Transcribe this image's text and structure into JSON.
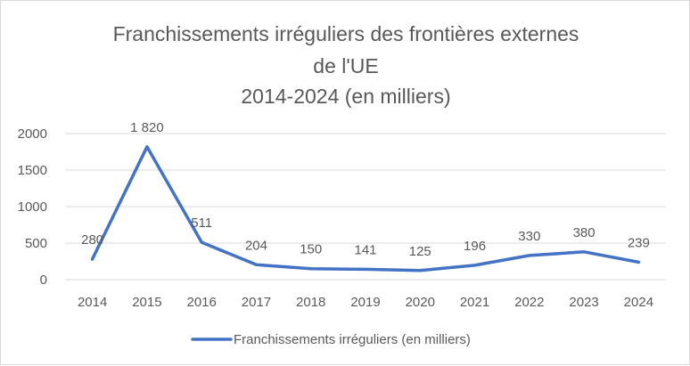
{
  "chart_data": {
    "type": "line",
    "title_lines": [
      "Franchissements irréguliers des frontières externes",
      "de l'UE",
      "2014-2024 (en milliers)"
    ],
    "categories": [
      "2014",
      "2015",
      "2016",
      "2017",
      "2018",
      "2019",
      "2020",
      "2021",
      "2022",
      "2023",
      "2024"
    ],
    "series": [
      {
        "name": "Franchissements irréguliers (en milliers)",
        "values": [
          280,
          1820,
          511,
          204,
          150,
          141,
          125,
          196,
          330,
          380,
          239
        ],
        "labels": [
          "280",
          "1 820",
          "511",
          "204",
          "150",
          "141",
          "125",
          "196",
          "330",
          "380",
          "239"
        ],
        "color": "#4472c4"
      }
    ],
    "y_ticks": [
      "0",
      "500",
      "1000",
      "1500",
      "2000"
    ],
    "ylim": [
      0,
      2000
    ],
    "grid": true,
    "legend_position": "bottom",
    "gridline_color": "#d9d9d9",
    "axis_line_color": "#d9d9d9"
  }
}
